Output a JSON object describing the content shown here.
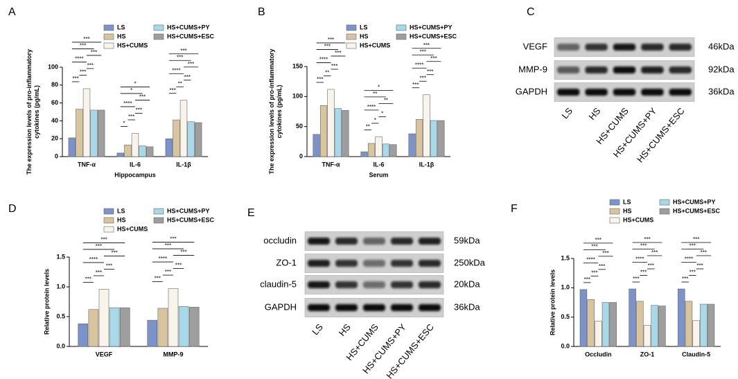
{
  "chart_data": [
    {
      "type": "bar",
      "label": "A",
      "ylabel": [
        "The expression levels of pro-inflammatory",
        "cytokines (pg/mL)"
      ],
      "xlabel": "Hippocampus",
      "categories": [
        "TNF-α",
        "IL-6",
        "IL-1β"
      ],
      "series": [
        {
          "name": "LS",
          "color": "#7b93c8",
          "values": [
            21,
            4,
            20
          ]
        },
        {
          "name": "HS",
          "color": "#d9c4a0",
          "values": [
            53,
            13,
            41
          ]
        },
        {
          "name": "HS+CUMS",
          "color": "#f8f4ec",
          "values": [
            76,
            26,
            63
          ]
        },
        {
          "name": "HS+CUMS+PY",
          "color": "#a9d9e8",
          "values": [
            52,
            12,
            39
          ]
        },
        {
          "name": "HS+CUMS+ESC",
          "color": "#9e9e9e",
          "values": [
            52,
            11,
            38
          ]
        }
      ],
      "ylim": [
        0,
        100
      ],
      "yticks": [
        0,
        20,
        40,
        60,
        80,
        100
      ],
      "annotations": [
        [
          "***",
          "***",
          "***",
          "****",
          "***",
          "***",
          "***"
        ],
        [
          "*",
          "***",
          "***",
          "****",
          "***",
          "*",
          "*"
        ],
        [
          "***",
          "**",
          "***",
          "****",
          "***",
          "***",
          "***"
        ]
      ]
    },
    {
      "type": "bar",
      "label": "B",
      "ylabel": [
        "The expression levels of pro-inflammatory",
        "cytokines (pg/mL)"
      ],
      "xlabel": "Serum",
      "categories": [
        "TNF-α",
        "IL-6",
        "IL-1β"
      ],
      "series": [
        {
          "name": "LS",
          "color": "#7b93c8",
          "values": [
            37,
            8,
            38
          ]
        },
        {
          "name": "HS",
          "color": "#d9c4a0",
          "values": [
            85,
            22,
            62
          ]
        },
        {
          "name": "HS+CUMS",
          "color": "#f8f4ec",
          "values": [
            112,
            33,
            103
          ]
        },
        {
          "name": "HS+CUMS+PY",
          "color": "#a9d9e8",
          "values": [
            80,
            21,
            60
          ]
        },
        {
          "name": "HS+CUMS+ESC",
          "color": "#9e9e9e",
          "values": [
            77,
            20,
            60
          ]
        }
      ],
      "ylim": [
        0,
        150
      ],
      "yticks": [
        0,
        50,
        100,
        150
      ],
      "annotations": [
        [
          "***",
          "**",
          "***",
          "****",
          "***",
          "***",
          "***"
        ],
        [
          "**",
          "*",
          "*",
          "****",
          "**",
          "**",
          "*"
        ],
        [
          "***",
          "***",
          "***",
          "****",
          "***",
          "***",
          "***"
        ]
      ]
    },
    {
      "type": "bar",
      "label": "D",
      "ylabel": [
        "Relative protein levels"
      ],
      "categories": [
        "VEGF",
        "MMP-9"
      ],
      "series": [
        {
          "name": "LS",
          "color": "#7b93c8",
          "values": [
            0.38,
            0.44
          ]
        },
        {
          "name": "HS",
          "color": "#d9c4a0",
          "values": [
            0.62,
            0.64
          ]
        },
        {
          "name": "HS+CUMS",
          "color": "#f8f4ec",
          "values": [
            0.96,
            0.97
          ]
        },
        {
          "name": "HS+CUMS+PY",
          "color": "#a9d9e8",
          "values": [
            0.65,
            0.67
          ]
        },
        {
          "name": "HS+CUMS+ESC",
          "color": "#9e9e9e",
          "values": [
            0.65,
            0.66
          ]
        }
      ],
      "ylim": [
        0,
        1.5
      ],
      "yticks": [
        {
          "value": 0,
          "label": "0.0"
        },
        0.5,
        {
          "value": 1,
          "label": "1.0"
        },
        1.5
      ],
      "annotations": [
        [
          "***",
          "***",
          "***",
          "****",
          "***",
          "***",
          "***"
        ],
        [
          "***",
          "***",
          "***",
          "****",
          "***",
          "***",
          "***"
        ]
      ]
    },
    {
      "type": "bar",
      "label": "F",
      "ylabel": [
        "Relative protein levels"
      ],
      "categories": [
        "Occludin",
        "ZO-1",
        "Claudin-5"
      ],
      "series": [
        {
          "name": "LS",
          "color": "#7b93c8",
          "values": [
            0.97,
            0.98,
            0.98
          ]
        },
        {
          "name": "HS",
          "color": "#d9c4a0",
          "values": [
            0.8,
            0.77,
            0.77
          ]
        },
        {
          "name": "HS+CUMS",
          "color": "#f8f4ec",
          "values": [
            0.43,
            0.36,
            0.44
          ]
        },
        {
          "name": "HS+CUMS+PY",
          "color": "#a9d9e8",
          "values": [
            0.75,
            0.7,
            0.72
          ]
        },
        {
          "name": "HS+CUMS+ESC",
          "color": "#9e9e9e",
          "values": [
            0.75,
            0.69,
            0.72
          ]
        }
      ],
      "ylim": [
        0,
        1.5
      ],
      "yticks": [
        {
          "value": 0,
          "label": "0.0"
        },
        0.5,
        {
          "value": 1,
          "label": "1.0"
        },
        1.5
      ],
      "annotations": [
        [
          "***",
          "***",
          "***",
          "****",
          "***",
          "***",
          "***"
        ],
        [
          "***",
          "***",
          "***",
          "****",
          "***",
          "***",
          "***"
        ],
        [
          "***",
          "***",
          "***",
          "****",
          "***",
          "***",
          "***"
        ]
      ]
    }
  ],
  "blots": [
    {
      "label": "C",
      "rows": [
        {
          "name": "VEGF",
          "size": "46kDa"
        },
        {
          "name": "MMP-9",
          "size": "92kDa"
        },
        {
          "name": "GAPDH",
          "size": "36kDa"
        }
      ],
      "lanes": [
        "LS",
        "HS",
        "HS+CUMS",
        "HS+CUMS+PY",
        "HS+CUMS+ESC"
      ]
    },
    {
      "label": "E",
      "rows": [
        {
          "name": "occludin",
          "size": "59kDa"
        },
        {
          "name": "ZO-1",
          "size": "250kDa"
        },
        {
          "name": "claudin-5",
          "size": "20kDa"
        },
        {
          "name": "GAPDH",
          "size": "36kDa"
        }
      ],
      "lanes": [
        "LS",
        "HS",
        "HS+CUMS",
        "HS+CUMS+PY",
        "HS+CUMS+ESC"
      ]
    }
  ]
}
